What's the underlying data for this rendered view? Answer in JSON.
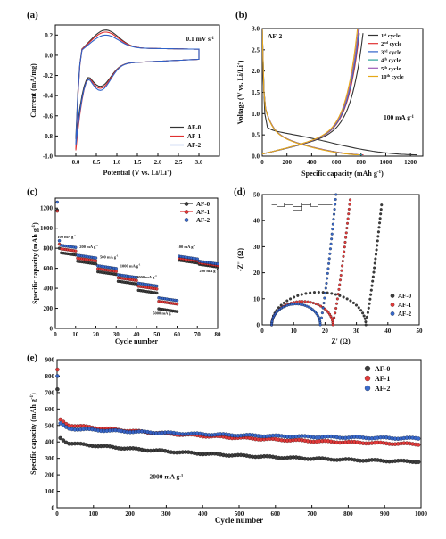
{
  "chart_data": [
    {
      "panel": "(a)",
      "type": "line",
      "annotation": "0.1 mV s",
      "annotation_sup": "-1",
      "xlabel": "Potential (V vs. Li/Li",
      "xlabel_sup": "+",
      "xlabel_end": ")",
      "ylabel": "Current (mA/mg)",
      "xlim": [
        -0.5,
        3.5
      ],
      "ylim": [
        -1.0,
        0.3
      ],
      "xticks": [
        "0.0",
        "0.5",
        "1.0",
        "1.5",
        "2.0",
        "2.5",
        "3.0"
      ],
      "yticks": [
        "-1.0",
        "-0.8",
        "-0.6",
        "-0.4",
        "-0.2",
        "0.0",
        "0.2"
      ],
      "legend": "bottom-right",
      "series": [
        {
          "name": "AF-0",
          "color": "#333333",
          "peak_anodic": 0.2,
          "peak_cathodic_end": -0.82
        },
        {
          "name": "AF-1",
          "color": "#e03030",
          "peak_anodic": 0.18,
          "peak_cathodic_end": -0.93
        },
        {
          "name": "AF-2",
          "color": "#2f62c9",
          "peak_anodic": 0.15,
          "peak_cathodic_end": -0.88
        }
      ]
    },
    {
      "panel": "(b)",
      "type": "line",
      "annotation_top": "AF-2",
      "annotation": "100 mA g",
      "annotation_sup": "-1",
      "xlabel": "Specific capacity (mAh g",
      "xlabel_sup": "-1",
      "xlabel_end": ")",
      "ylabel": "Voltage (V vs. Li/Li",
      "ylabel_sup": "+",
      "ylabel_end": ")",
      "xlim": [
        0,
        1300
      ],
      "ylim": [
        0,
        3.0
      ],
      "xticks": [
        "0",
        "200",
        "400",
        "600",
        "800",
        "1000",
        "1200"
      ],
      "yticks": [
        "0.0",
        "0.5",
        "1.0",
        "1.5",
        "2.0",
        "2.5",
        "3.0"
      ],
      "legend": "right",
      "series": [
        {
          "name": "1",
          "sup": "st",
          "suffix": " cycle",
          "color": "#333333",
          "discharge_capacity": 1250,
          "charge_capacity": 830
        },
        {
          "name": "2",
          "sup": "nd",
          "suffix": " cycle",
          "color": "#e03030",
          "discharge_capacity": 820,
          "charge_capacity": 800
        },
        {
          "name": "3",
          "sup": "rd",
          "suffix": " cycle",
          "color": "#2f62c9",
          "discharge_capacity": 810,
          "charge_capacity": 795
        },
        {
          "name": "4",
          "sup": "th",
          "suffix": " cycle",
          "color": "#2aa198",
          "discharge_capacity": 805,
          "charge_capacity": 790
        },
        {
          "name": "5",
          "sup": "th",
          "suffix": " cycle",
          "color": "#9b59b6",
          "discharge_capacity": 800,
          "charge_capacity": 788
        },
        {
          "name": "10",
          "sup": "th",
          "suffix": " cycle",
          "color": "#e6a817",
          "discharge_capacity": 790,
          "charge_capacity": 780
        }
      ]
    },
    {
      "panel": "(c)",
      "type": "scatter",
      "xlabel": "Cycle number",
      "ylabel": "Specific capacity (mAh g",
      "ylabel_sup": "-1",
      "ylabel_end": ")",
      "xlim": [
        0,
        80
      ],
      "ylim": [
        0,
        1300
      ],
      "xticks": [
        "0",
        "10",
        "20",
        "30",
        "40",
        "50",
        "60",
        "70",
        "80"
      ],
      "yticks": [
        "0",
        "200",
        "400",
        "600",
        "800",
        "1000",
        "1200"
      ],
      "legend": "top-right",
      "rate_labels": [
        {
          "text": "100 mA g",
          "sup": "-1",
          "x": 1,
          "y": 900
        },
        {
          "text": "200 mA g",
          "sup": "-1",
          "x": 12,
          "y": 800
        },
        {
          "text": "500 mA g",
          "sup": "-1",
          "x": 22,
          "y": 700
        },
        {
          "text": "1000 mA g",
          "sup": "-1",
          "x": 32,
          "y": 610
        },
        {
          "text": "2000 mA g",
          "sup": "-1",
          "x": 40,
          "y": 500
        },
        {
          "text": "5000 mA g",
          "sup": "-1",
          "x": 48,
          "y": 140
        },
        {
          "text": "100 mA g",
          "sup": "-1",
          "x": 60,
          "y": 800
        },
        {
          "text": "200 mA g",
          "sup": "-1",
          "x": 71,
          "y": 560
        }
      ],
      "series": [
        {
          "name": "AF-0",
          "color": "#333333",
          "first": 1180,
          "steps": [
            760,
            670,
            565,
            470,
            380,
            195,
            680,
            640
          ]
        },
        {
          "name": "AF-1",
          "color": "#e03030",
          "first": 1170,
          "steps": [
            800,
            700,
            595,
            505,
            420,
            270,
            700,
            655
          ]
        },
        {
          "name": "AF-2",
          "color": "#2f62c9",
          "first": 1260,
          "steps": [
            835,
            730,
            625,
            535,
            450,
            305,
            720,
            670
          ]
        }
      ]
    },
    {
      "panel": "(d)",
      "type": "scatter",
      "xlabel": "Z' (Ω)",
      "ylabel": "-Z'' (Ω)",
      "xlim": [
        0,
        50
      ],
      "ylim": [
        0,
        50
      ],
      "xticks": [
        "0",
        "10",
        "20",
        "30",
        "40",
        "50"
      ],
      "yticks": [
        "0",
        "10",
        "20",
        "30",
        "40",
        "50"
      ],
      "legend": "bottom-right",
      "series": [
        {
          "name": "AF-0",
          "color": "#333333",
          "r0": 3,
          "rct_end": 33,
          "semi_height": 12.5,
          "tail_top": [
            38,
            46
          ]
        },
        {
          "name": "AF-1",
          "color": "#e03030",
          "r0": 3,
          "rct_end": 22.5,
          "semi_height": 9,
          "tail_top": [
            28,
            48
          ]
        },
        {
          "name": "AF-2",
          "color": "#2f62c9",
          "r0": 3,
          "rct_end": 18.5,
          "semi_height": 8,
          "tail_top": [
            23.5,
            50
          ]
        }
      ]
    },
    {
      "panel": "(e)",
      "type": "scatter",
      "annotation": "2000 mA g",
      "annotation_sup": "-1",
      "xlabel": "Cycle number",
      "ylabel": "Specific capacity (mAh g",
      "ylabel_sup": "-1",
      "ylabel_end": ")",
      "xlim": [
        0,
        1000
      ],
      "ylim": [
        0,
        900
      ],
      "xticks": [
        "0",
        "100",
        "200",
        "300",
        "400",
        "500",
        "600",
        "700",
        "800",
        "900",
        "1000"
      ],
      "yticks": [
        "0",
        "100",
        "200",
        "300",
        "400",
        "500",
        "600",
        "700",
        "800",
        "900"
      ],
      "legend": "top-right",
      "series": [
        {
          "name": "AF-0",
          "color": "#333333",
          "first": 720,
          "start": 400,
          "end": 250
        },
        {
          "name": "AF-1",
          "color": "#e03030",
          "first": 840,
          "start": 510,
          "end": 355
        },
        {
          "name": "AF-2",
          "color": "#2f62c9",
          "first": 800,
          "start": 485,
          "end": 405
        }
      ]
    }
  ]
}
